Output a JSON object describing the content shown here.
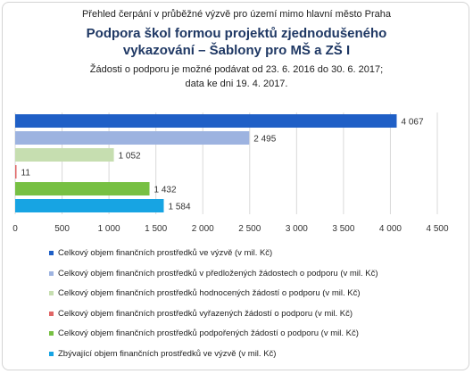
{
  "header": {
    "supertitle": "Přehled čerpání v průběžné výzvě pro území mimo hlavní město Praha",
    "title_line1": "Podpora škol formou projektů zjednodušeného",
    "title_line2": "vykazování – Šablony pro MŠ a ZŠ I",
    "subtitle_line1": "Žádosti o podporu je možné podávat od 23. 6. 2016 do 30. 6. 2017;",
    "subtitle_line2": "data ke dni 19. 4. 2017."
  },
  "chart_data": {
    "type": "bar",
    "orientation": "horizontal",
    "grid": true,
    "xlim": [
      0,
      4500
    ],
    "ticks": [
      0,
      500,
      1000,
      1500,
      2000,
      2500,
      3000,
      3500,
      4000,
      4500
    ],
    "tick_labels": [
      "0",
      "500",
      "1 000",
      "1 500",
      "2 000",
      "2 500",
      "3 000",
      "3 500",
      "4 000",
      "4 500"
    ],
    "series": [
      {
        "name": "Celkový objem finančních prostředků ve výzvě (v mil. Kč)",
        "value": 4067,
        "label": "4 067",
        "color": "#1f5fc6"
      },
      {
        "name": "Celkový objem finančních prostředků v předložených žádostech o podporu (v mil. Kč)",
        "value": 2495,
        "label": "2 495",
        "color": "#9db3e0"
      },
      {
        "name": "Celkový objem finančních prostředků hodnocených žádostí o podporu (v mil. Kč)",
        "value": 1052,
        "label": "1 052",
        "color": "#c6deb0"
      },
      {
        "name": "Celkový objem finančních prostředků vyřazených žádostí o podporu (v mil. Kč)",
        "value": 11,
        "label": "11",
        "color": "#e06666"
      },
      {
        "name": "Celkový objem finančních prostředků podpořených žádostí o podporu (v mil. Kč)",
        "value": 1432,
        "label": "1 432",
        "color": "#77c043"
      },
      {
        "name": "Zbývající objem finančních prostředků ve výzvě (v mil. Kč)",
        "value": 1584,
        "label": "1 584",
        "color": "#17a4e3"
      }
    ],
    "legend_position": "bottom"
  }
}
